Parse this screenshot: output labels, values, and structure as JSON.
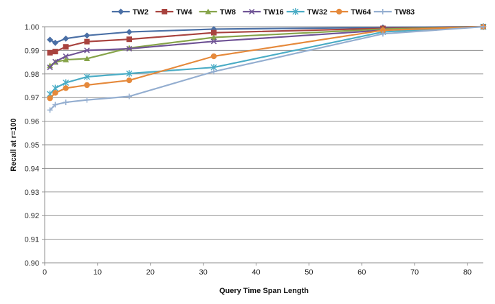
{
  "chart_data": {
    "type": "line",
    "title": "",
    "xlabel": "Query Time Span Length",
    "ylabel": "Recall at r=100",
    "xlim": [
      0,
      83
    ],
    "ylim": [
      0.9,
      1.0
    ],
    "xticks": [
      "0",
      "10",
      "20",
      "30",
      "40",
      "50",
      "60",
      "70",
      "80"
    ],
    "yticks": [
      "0.90",
      "0.91",
      "0.92",
      "0.93",
      "0.94",
      "0.95",
      "0.96",
      "0.97",
      "0.98",
      "0.99",
      "1.00"
    ],
    "grid": "horizontal",
    "legend_position": "top",
    "series": [
      {
        "name": "TW2",
        "color": "#4a6fa5",
        "marker": "diamond",
        "points": [
          [
            1,
            0.9945
          ],
          [
            2,
            0.9932
          ],
          [
            4,
            0.995
          ],
          [
            8,
            0.9963
          ],
          [
            16,
            0.9978
          ],
          [
            32,
            0.999
          ],
          [
            64,
            0.9997
          ],
          [
            83,
            1.0
          ]
        ]
      },
      {
        "name": "TW4",
        "color": "#a8433f",
        "marker": "square",
        "points": [
          [
            1,
            0.989
          ],
          [
            2,
            0.9895
          ],
          [
            4,
            0.9915
          ],
          [
            8,
            0.9937
          ],
          [
            16,
            0.9947
          ],
          [
            32,
            0.9975
          ],
          [
            64,
            0.9993
          ],
          [
            83,
            1.0
          ]
        ]
      },
      {
        "name": "TW8",
        "color": "#86a44a",
        "marker": "triangle",
        "points": [
          [
            1,
            0.9835
          ],
          [
            2,
            0.985
          ],
          [
            4,
            0.986
          ],
          [
            8,
            0.9865
          ],
          [
            16,
            0.991
          ],
          [
            32,
            0.9955
          ],
          [
            64,
            0.999
          ],
          [
            83,
            1.0
          ]
        ]
      },
      {
        "name": "TW16",
        "color": "#6f5395",
        "marker": "x",
        "points": [
          [
            1,
            0.9828
          ],
          [
            2,
            0.9852
          ],
          [
            4,
            0.9875
          ],
          [
            8,
            0.99
          ],
          [
            16,
            0.9907
          ],
          [
            32,
            0.9938
          ],
          [
            64,
            0.9985
          ],
          [
            83,
            1.0
          ]
        ]
      },
      {
        "name": "TW32",
        "color": "#4aacc5",
        "marker": "star",
        "points": [
          [
            1,
            0.9715
          ],
          [
            2,
            0.974
          ],
          [
            4,
            0.9763
          ],
          [
            8,
            0.9788
          ],
          [
            16,
            0.9802
          ],
          [
            32,
            0.9828
          ],
          [
            64,
            0.9978
          ],
          [
            83,
            1.0
          ]
        ]
      },
      {
        "name": "TW64",
        "color": "#e5893b",
        "marker": "circle",
        "points": [
          [
            1,
            0.9697
          ],
          [
            2,
            0.972
          ],
          [
            4,
            0.974
          ],
          [
            8,
            0.9753
          ],
          [
            16,
            0.9773
          ],
          [
            32,
            0.9875
          ],
          [
            64,
            0.9985
          ],
          [
            83,
            1.0
          ]
        ]
      },
      {
        "name": "TW83",
        "color": "#94aed0",
        "marker": "plus",
        "points": [
          [
            1,
            0.9647
          ],
          [
            2,
            0.967
          ],
          [
            4,
            0.968
          ],
          [
            8,
            0.969
          ],
          [
            16,
            0.9705
          ],
          [
            32,
            0.981
          ],
          [
            64,
            0.997
          ],
          [
            83,
            1.0
          ]
        ]
      }
    ]
  }
}
